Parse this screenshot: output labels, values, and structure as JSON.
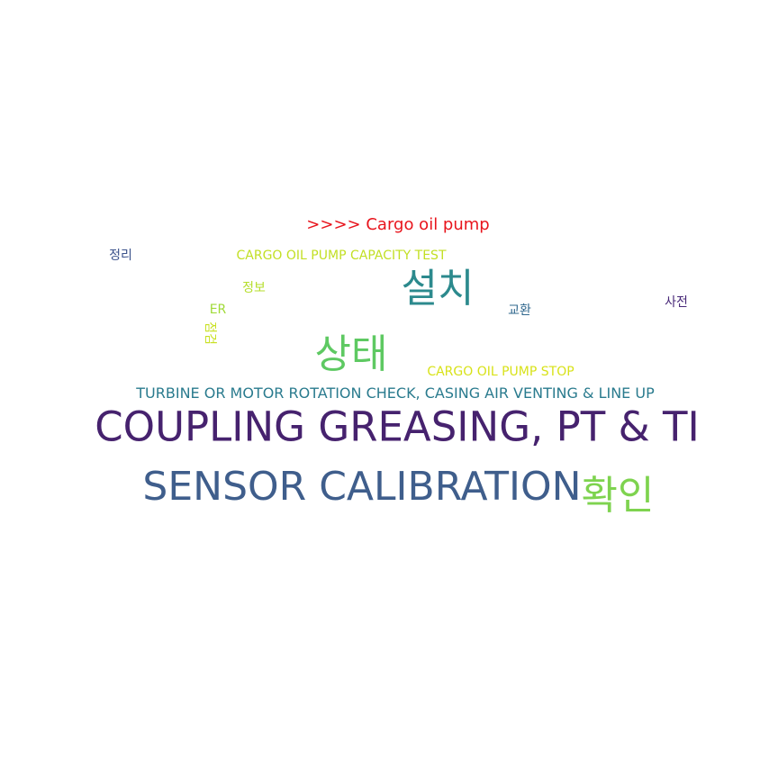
{
  "title": {
    "text": "Cargo oil pump",
    "prefix": ">>>>",
    "color": "#e8141c"
  },
  "words": [
    {
      "text": "COUPLING GREASING, PT & TI",
      "color": "#46226e"
    },
    {
      "text": "SENSOR CALIBRATION",
      "color": "#3f5e8c"
    },
    {
      "text": "확인",
      "color": "#7ed34f"
    },
    {
      "text": "상태",
      "color": "#5ec962"
    },
    {
      "text": "설치",
      "color": "#2c8a8d"
    },
    {
      "text": "TURBINE OR MOTOR ROTATION CHECK, CASING AIR VENTING & LINE UP",
      "color": "#2a7b8e"
    },
    {
      "text": "CARGO OIL PUMP CAPACITY TEST",
      "color": "#c2df23"
    },
    {
      "text": "CARGO OIL PUMP STOP",
      "color": "#d8e219"
    },
    {
      "text": "정리",
      "color": "#3b528b"
    },
    {
      "text": "정보",
      "color": "#b5de2b"
    },
    {
      "text": "ER",
      "color": "#a0da39"
    },
    {
      "text": "교환",
      "color": "#31688e"
    },
    {
      "text": "사전",
      "color": "#482878"
    },
    {
      "text": "점검",
      "color": "#c8e020"
    }
  ]
}
